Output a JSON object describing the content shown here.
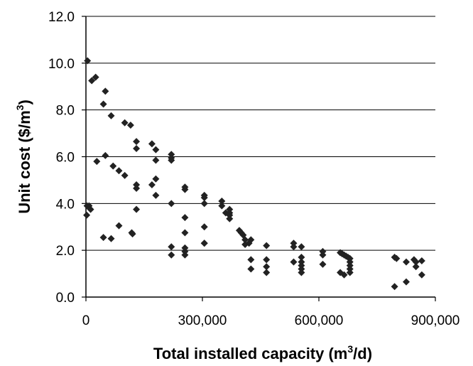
{
  "chart_data": {
    "type": "scatter",
    "title": "",
    "xlabel": "Total installed capacity (m3/d)",
    "xlabel_parts": {
      "before": "Total installed capacity (m",
      "sup": "3",
      "after": "/d)"
    },
    "ylabel": "Unit cost ($/m3)",
    "ylabel_parts": {
      "before": "Unit cost ($/m",
      "sup": "3",
      "after": ")"
    },
    "xlim": [
      0,
      900000
    ],
    "ylim": [
      0,
      12
    ],
    "x_ticks": [
      {
        "value": 0,
        "label": "0"
      },
      {
        "value": 300000,
        "label": "300,000"
      },
      {
        "value": 600000,
        "label": "600,000"
      },
      {
        "value": 900000,
        "label": "900,000"
      }
    ],
    "y_ticks": [
      {
        "value": 0,
        "label": "0.0"
      },
      {
        "value": 2,
        "label": "2.0"
      },
      {
        "value": 4,
        "label": "4.0"
      },
      {
        "value": 6,
        "label": "6.0"
      },
      {
        "value": 8,
        "label": "8.0"
      },
      {
        "value": 10,
        "label": "10.0"
      },
      {
        "value": 12,
        "label": "12.0"
      }
    ],
    "grid": "horizontal",
    "marker": "diamond",
    "marker_color": "#222222",
    "series": [
      {
        "points": [
          [
            4000,
            10.1
          ],
          [
            2000,
            3.5
          ],
          [
            3000,
            3.9
          ],
          [
            8000,
            3.9
          ],
          [
            12000,
            3.75
          ],
          [
            15000,
            9.25
          ],
          [
            25000,
            9.4
          ],
          [
            28000,
            5.8
          ],
          [
            45000,
            8.25
          ],
          [
            50000,
            8.8
          ],
          [
            50000,
            6.05
          ],
          [
            45000,
            2.55
          ],
          [
            65000,
            7.75
          ],
          [
            65000,
            2.5
          ],
          [
            70000,
            5.6
          ],
          [
            85000,
            5.4
          ],
          [
            85000,
            3.05
          ],
          [
            100000,
            7.45
          ],
          [
            100000,
            5.2
          ],
          [
            115000,
            7.35
          ],
          [
            118000,
            2.75
          ],
          [
            120000,
            2.7
          ],
          [
            130000,
            6.65
          ],
          [
            130000,
            6.35
          ],
          [
            130000,
            4.8
          ],
          [
            130000,
            4.65
          ],
          [
            130000,
            3.75
          ],
          [
            170000,
            6.55
          ],
          [
            170000,
            4.8
          ],
          [
            180000,
            6.3
          ],
          [
            180000,
            5.85
          ],
          [
            180000,
            5.05
          ],
          [
            180000,
            4.35
          ],
          [
            220000,
            6.1
          ],
          [
            220000,
            5.95
          ],
          [
            220000,
            5.85
          ],
          [
            220000,
            4.0
          ],
          [
            220000,
            2.15
          ],
          [
            220000,
            1.8
          ],
          [
            255000,
            4.7
          ],
          [
            255000,
            4.6
          ],
          [
            255000,
            3.4
          ],
          [
            255000,
            2.75
          ],
          [
            255000,
            2.1
          ],
          [
            255000,
            1.95
          ],
          [
            255000,
            1.8
          ],
          [
            305000,
            4.35
          ],
          [
            305000,
            4.25
          ],
          [
            305000,
            4.0
          ],
          [
            305000,
            3.0
          ],
          [
            305000,
            2.3
          ],
          [
            305000,
            2.3
          ],
          [
            350000,
            4.1
          ],
          [
            350000,
            3.9
          ],
          [
            360000,
            3.6
          ],
          [
            370000,
            3.75
          ],
          [
            370000,
            3.6
          ],
          [
            370000,
            3.5
          ],
          [
            370000,
            3.35
          ],
          [
            395000,
            2.85
          ],
          [
            400000,
            2.75
          ],
          [
            405000,
            2.65
          ],
          [
            410000,
            2.45
          ],
          [
            410000,
            2.25
          ],
          [
            420000,
            2.3
          ],
          [
            425000,
            2.45
          ],
          [
            425000,
            1.6
          ],
          [
            425000,
            1.2
          ],
          [
            465000,
            2.2
          ],
          [
            465000,
            1.6
          ],
          [
            465000,
            1.3
          ],
          [
            465000,
            1.05
          ],
          [
            535000,
            2.3
          ],
          [
            535000,
            2.15
          ],
          [
            535000,
            1.5
          ],
          [
            555000,
            2.15
          ],
          [
            555000,
            1.7
          ],
          [
            555000,
            1.5
          ],
          [
            555000,
            1.35
          ],
          [
            555000,
            1.2
          ],
          [
            555000,
            1.05
          ],
          [
            610000,
            1.95
          ],
          [
            610000,
            1.8
          ],
          [
            610000,
            1.4
          ],
          [
            655000,
            1.9
          ],
          [
            660000,
            1.85
          ],
          [
            665000,
            1.8
          ],
          [
            670000,
            1.75
          ],
          [
            675000,
            1.7
          ],
          [
            680000,
            1.65
          ],
          [
            680000,
            1.5
          ],
          [
            680000,
            1.35
          ],
          [
            680000,
            1.2
          ],
          [
            680000,
            1.05
          ],
          [
            655000,
            1.05
          ],
          [
            665000,
            0.95
          ],
          [
            795000,
            1.7
          ],
          [
            800000,
            1.65
          ],
          [
            795000,
            0.45
          ],
          [
            825000,
            1.5
          ],
          [
            825000,
            0.65
          ],
          [
            845000,
            1.6
          ],
          [
            850000,
            1.5
          ],
          [
            850000,
            1.3
          ],
          [
            865000,
            1.55
          ],
          [
            865000,
            0.95
          ]
        ]
      }
    ]
  }
}
